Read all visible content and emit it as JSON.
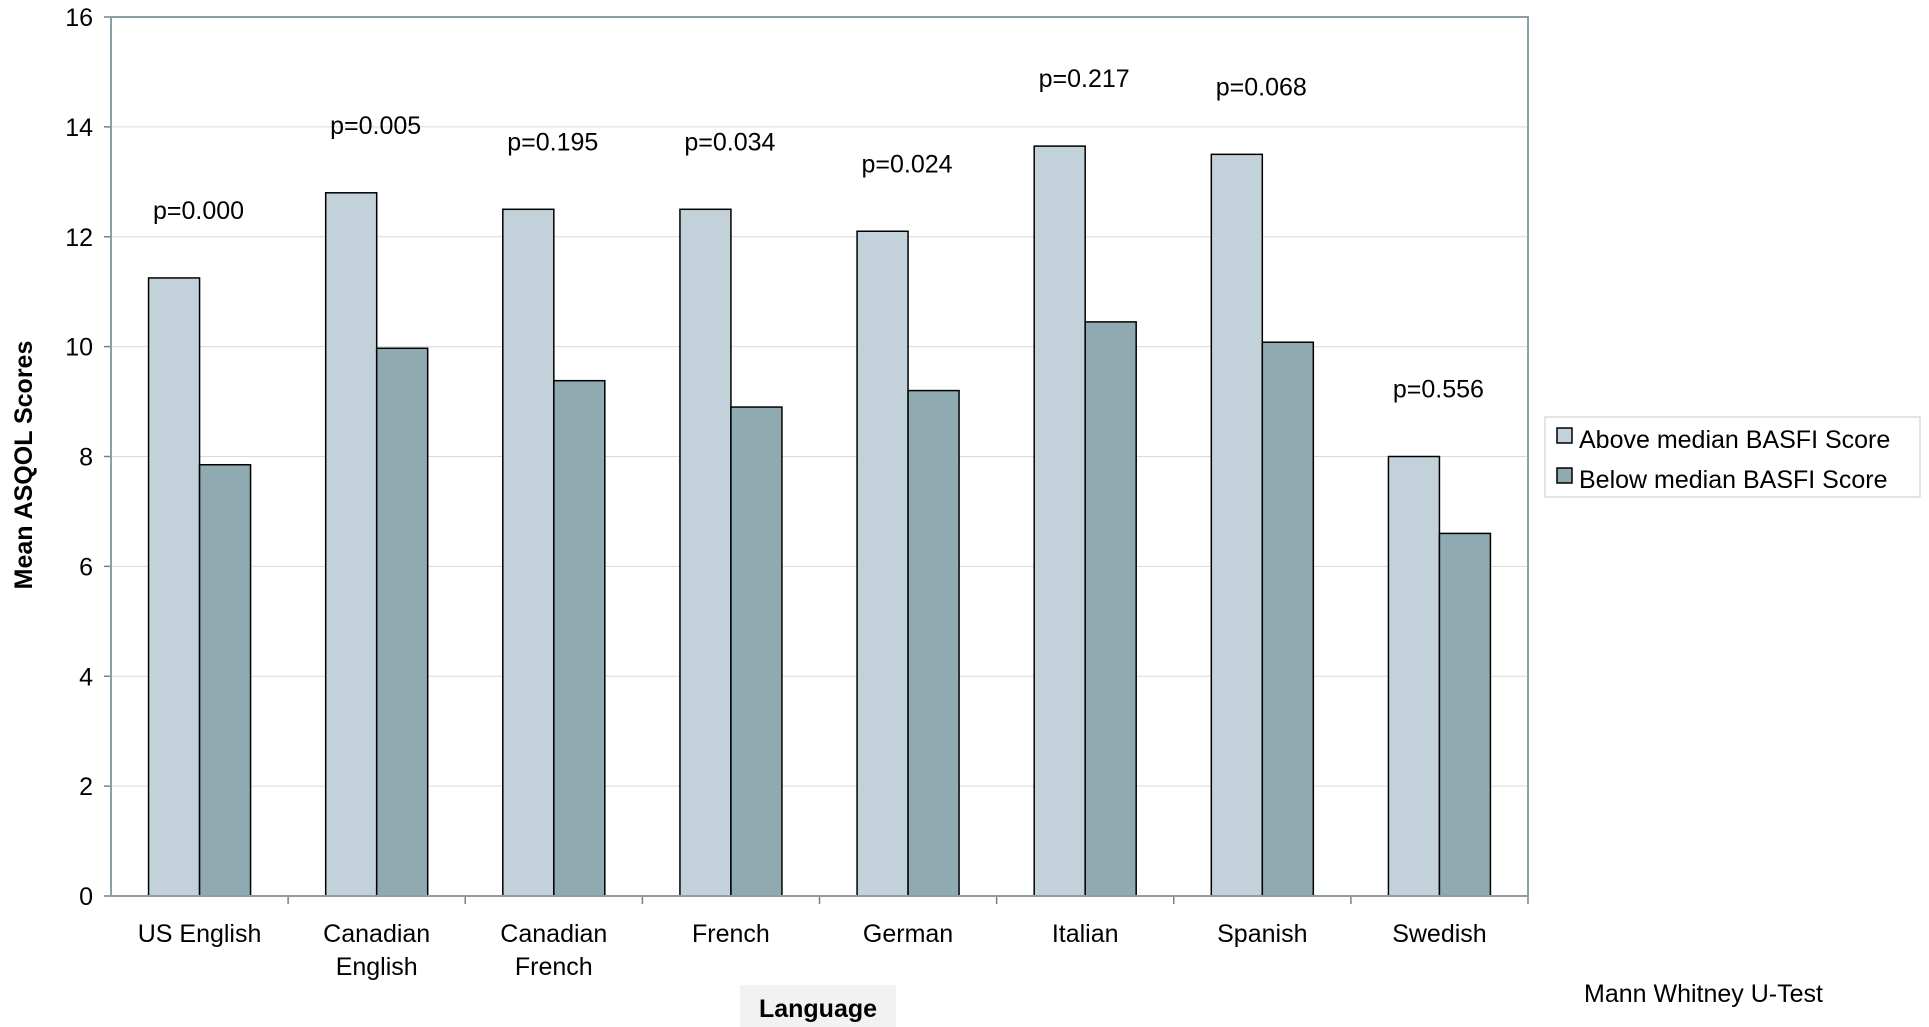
{
  "chart_data": {
    "type": "bar",
    "xlabel": "Language",
    "ylabel": "Mean ASQOL Scores",
    "ylim": [
      0,
      16
    ],
    "yticks": [
      0,
      2,
      4,
      6,
      8,
      10,
      12,
      14,
      16
    ],
    "grid": true,
    "legend_position": "right",
    "categories": [
      [
        "US English"
      ],
      [
        "Canadian",
        "English"
      ],
      [
        "Canadian",
        "French"
      ],
      [
        "French"
      ],
      [
        "German"
      ],
      [
        "Italian"
      ],
      [
        "Spanish"
      ],
      [
        "Swedish"
      ]
    ],
    "series": [
      {
        "name": "Above median BASFI Score",
        "color": "#c3d2da",
        "values": [
          11.25,
          12.8,
          12.5,
          12.5,
          12.1,
          13.65,
          13.5,
          8.0
        ]
      },
      {
        "name": "Below median BASFI Score",
        "color": "#8faab0",
        "values": [
          7.85,
          9.97,
          9.38,
          8.9,
          9.2,
          10.45,
          10.08,
          6.6
        ]
      }
    ],
    "annotations": [
      "p=0.000",
      "p=0.005",
      "p=0.195",
      "p=0.034",
      "p=0.024",
      "p=0.217",
      "p=0.068",
      "p=0.556"
    ],
    "footnote": "Mann Whitney U-Test"
  }
}
